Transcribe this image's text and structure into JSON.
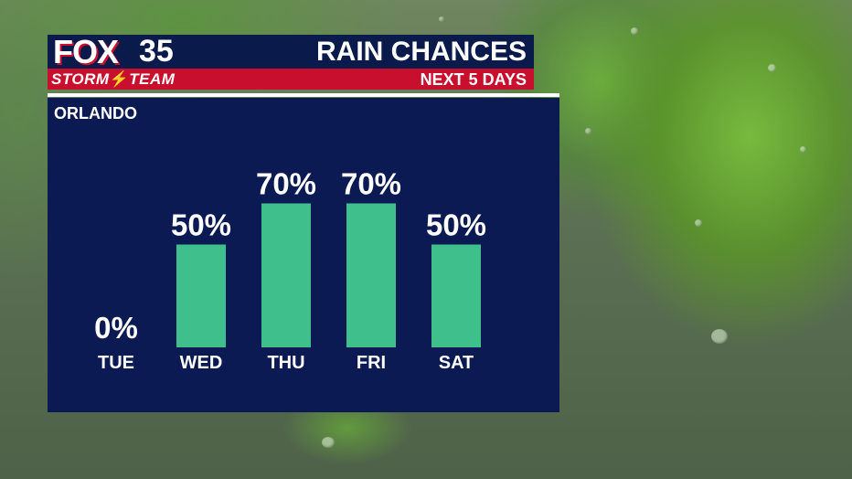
{
  "brand": {
    "logo_word": "FOX",
    "logo_number": "35",
    "team_left": "STORM",
    "team_bolt": "⚡",
    "team_right": "TEAM"
  },
  "header": {
    "title": "RAIN CHANCES",
    "subtitle": "NEXT 5 DAYS"
  },
  "location": "ORLANDO",
  "colors": {
    "panel": "#0b1a52",
    "bar": "#3ebf8c",
    "accent_red": "#c8102e",
    "text": "#ffffff"
  },
  "chart_data": {
    "type": "bar",
    "title": "RAIN CHANCES",
    "subtitle": "NEXT 5 DAYS",
    "categories": [
      "TUE",
      "WED",
      "THU",
      "FRI",
      "SAT"
    ],
    "values": [
      0,
      50,
      70,
      70,
      50
    ],
    "value_labels": [
      "0%",
      "50%",
      "70%",
      "70%",
      "50%"
    ],
    "unit": "%",
    "ylim": [
      0,
      100
    ],
    "grid": false,
    "legend": "none"
  }
}
